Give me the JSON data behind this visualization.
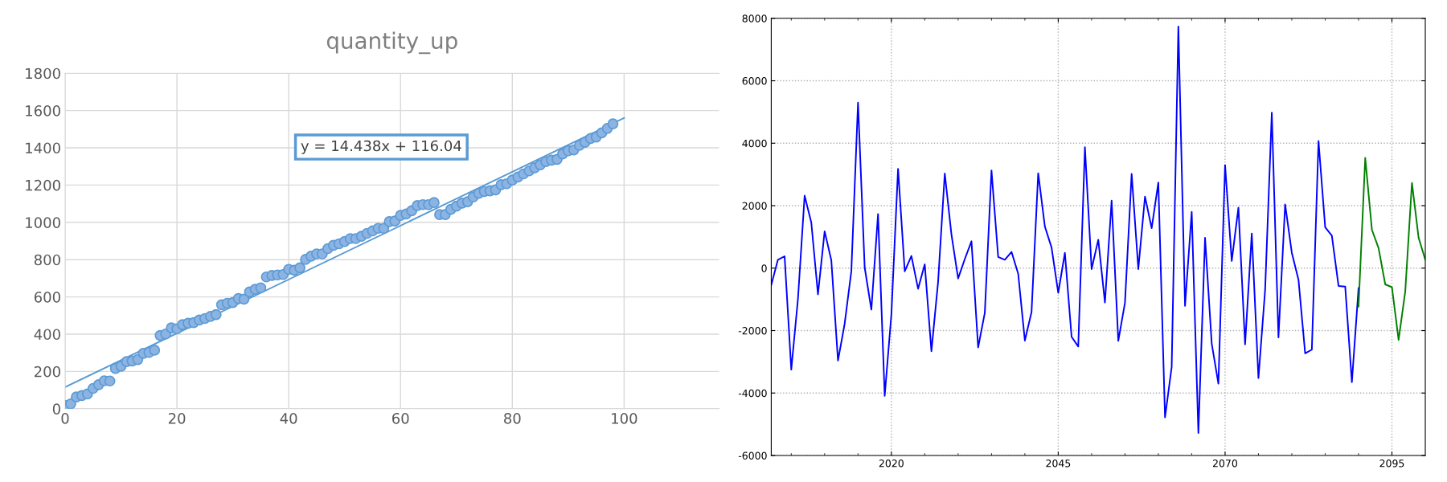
{
  "chart_data": [
    {
      "type": "scatter",
      "title": "quantity_up",
      "xlim": [
        0,
        117
      ],
      "xticks": [
        0,
        20,
        40,
        60,
        80,
        100
      ],
      "ylim": [
        0,
        1800
      ],
      "yticks": [
        0,
        200,
        400,
        600,
        800,
        1000,
        1200,
        1400,
        1600,
        1800
      ],
      "grid": true,
      "legend": false,
      "annotations": [
        "y = 14.438x + 116.04"
      ],
      "series": [
        {
          "color": "#8db3e2",
          "marker": "circle",
          "x": [
            0,
            1,
            2,
            3,
            4,
            5,
            6,
            7,
            8,
            9,
            10,
            11,
            12,
            13,
            14,
            15,
            16,
            17,
            18,
            19,
            20,
            21,
            22,
            23,
            24,
            25,
            26,
            27,
            28,
            29,
            30,
            31,
            32,
            33,
            34,
            35,
            36,
            37,
            38,
            39,
            40,
            41,
            42,
            43,
            44,
            45,
            46,
            47,
            48,
            49,
            50,
            51,
            52,
            53,
            54,
            55,
            56,
            57,
            58,
            59,
            60,
            61,
            62,
            63,
            64,
            65,
            66,
            67,
            68,
            69,
            70,
            71,
            72,
            73,
            74,
            75,
            76,
            77,
            78,
            79,
            80,
            81,
            82,
            83,
            84,
            85,
            86,
            87,
            88,
            89,
            90,
            91,
            92,
            93,
            94,
            95,
            96,
            97,
            98
          ],
          "values": [
            17,
            26,
            63,
            71,
            79,
            109,
            129,
            150,
            149,
            216,
            228,
            253,
            256,
            264,
            297,
            302,
            314,
            393,
            401,
            434,
            429,
            451,
            459,
            462,
            476,
            484,
            495,
            505,
            558,
            566,
            570,
            591,
            588,
            627,
            641,
            649,
            707,
            715,
            718,
            720,
            748,
            743,
            756,
            801,
            819,
            831,
            831,
            859,
            877,
            885,
            897,
            913,
            913,
            925,
            941,
            954,
            968,
            968,
            1004,
            1007,
            1037,
            1045,
            1062,
            1090,
            1095,
            1095,
            1106,
            1042,
            1042,
            1070,
            1087,
            1103,
            1111,
            1136,
            1156,
            1166,
            1169,
            1174,
            1202,
            1207,
            1227,
            1243,
            1260,
            1276,
            1293,
            1309,
            1326,
            1334,
            1338,
            1367,
            1384,
            1389,
            1413,
            1430,
            1450,
            1458,
            1480,
            1504,
            1529
          ]
        },
        {
          "type": "line",
          "color": "#5b9bd5",
          "x": [
            0,
            100
          ],
          "values": [
            116,
            1560
          ]
        }
      ]
    },
    {
      "type": "line",
      "xlim": [
        2002,
        2100
      ],
      "xticks": [
        {
          "value": 2005,
          "label": null
        },
        {
          "value": 2010,
          "label": null
        },
        {
          "value": 2015,
          "label": null
        },
        2020,
        {
          "value": 2025,
          "label": null
        },
        {
          "value": 2030,
          "label": null
        },
        {
          "value": 2035,
          "label": null
        },
        {
          "value": 2040,
          "label": null
        },
        2045,
        {
          "value": 2050,
          "label": null
        },
        {
          "value": 2055,
          "label": null
        },
        {
          "value": 2060,
          "label": null
        },
        {
          "value": 2065,
          "label": null
        },
        2070,
        {
          "value": 2075,
          "label": null
        },
        {
          "value": 2080,
          "label": null
        },
        {
          "value": 2085,
          "label": null
        },
        {
          "value": 2090,
          "label": null
        },
        2095
      ],
      "ylim": [
        -6000,
        8000
      ],
      "yticks": [
        -6000,
        -4000,
        -2000,
        0,
        2000,
        4000,
        6000,
        8000
      ],
      "grid": true,
      "legend": false,
      "series": [
        {
          "color": "#0000ff",
          "x": [
            2002,
            2003,
            2004,
            2005,
            2006,
            2007,
            2008,
            2009,
            2010,
            2011,
            2012,
            2013,
            2014,
            2015,
            2016,
            2017,
            2018,
            2019,
            2020,
            2021,
            2022,
            2023,
            2024,
            2025,
            2026,
            2027,
            2028,
            2029,
            2030,
            2031,
            2032,
            2033,
            2034,
            2035,
            2036,
            2037,
            2038,
            2039,
            2040,
            2041,
            2042,
            2043,
            2044,
            2045,
            2046,
            2047,
            2048,
            2049,
            2050,
            2051,
            2052,
            2053,
            2054,
            2055,
            2056,
            2057,
            2058,
            2059,
            2060,
            2061,
            2062,
            2063,
            2064,
            2065,
            2066,
            2067,
            2068,
            2069,
            2070,
            2071,
            2072,
            2073,
            2074,
            2075,
            2076,
            2077,
            2078,
            2079,
            2080,
            2081,
            2082,
            2083,
            2084,
            2085,
            2086,
            2087,
            2088,
            2089,
            2090
          ],
          "values": [
            -540,
            270,
            380,
            -3250,
            -990,
            2320,
            1460,
            -840,
            1180,
            250,
            -2960,
            -1780,
            -100,
            5300,
            20,
            -1330,
            1730,
            -4090,
            -1480,
            3180,
            -100,
            390,
            -660,
            120,
            -2660,
            -440,
            3030,
            1080,
            -330,
            290,
            860,
            -2540,
            -1430,
            3130,
            360,
            270,
            520,
            -180,
            -2320,
            -1410,
            3040,
            1330,
            660,
            -790,
            490,
            -2200,
            -2510,
            3870,
            -30,
            910,
            -1100,
            2160,
            -2330,
            -1110,
            3020,
            -30,
            2290,
            1280,
            2740,
            -4780,
            -3170,
            7740,
            -1210,
            1800,
            -5280,
            970,
            -2420,
            -3700,
            3300,
            230,
            1940,
            -2440,
            1110,
            -3520,
            -700,
            4980,
            -2220,
            2040,
            490,
            -370,
            -2730,
            -2610,
            4070,
            1310,
            1040,
            -570,
            -590,
            -3650,
            -640
          ]
        },
        {
          "color": "#008000",
          "x": [
            2090,
            2091,
            2092,
            2093,
            2094,
            2095,
            2096,
            2097,
            2098,
            2099,
            2100
          ],
          "values": [
            -1230,
            3530,
            1230,
            640,
            -520,
            -610,
            -2300,
            -740,
            2730,
            970,
            270
          ]
        }
      ]
    }
  ]
}
